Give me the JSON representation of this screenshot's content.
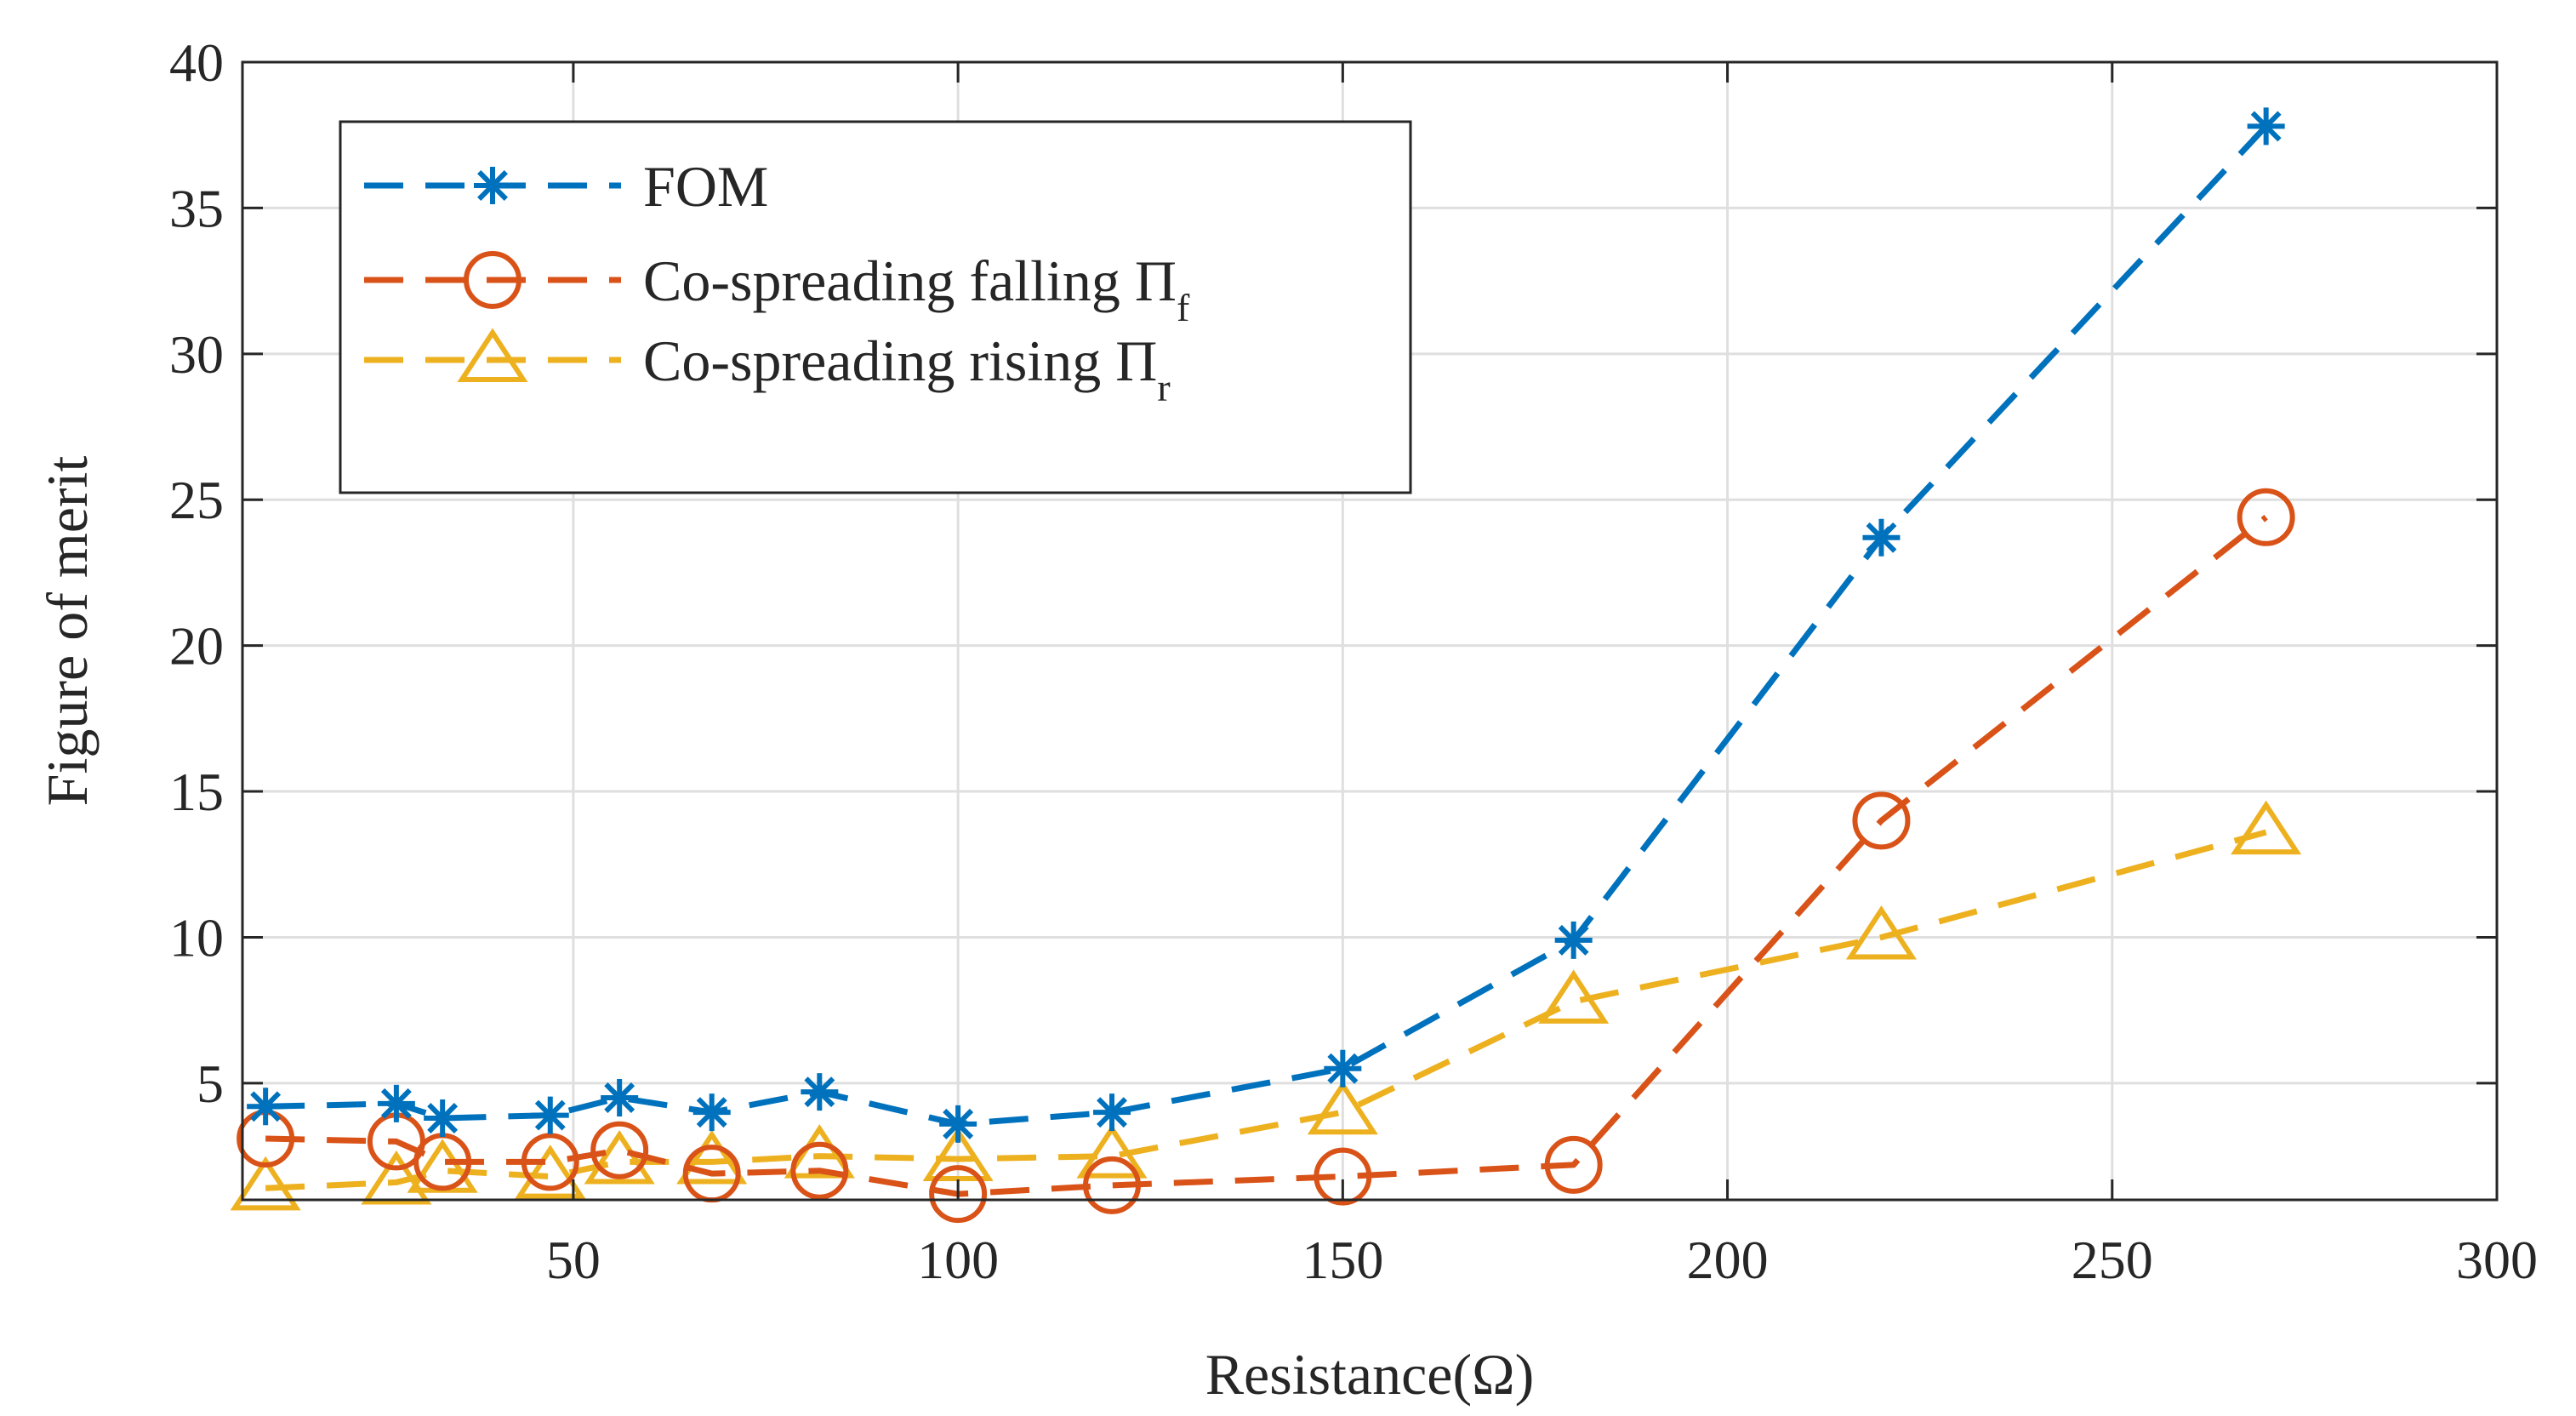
{
  "chart_data": {
    "type": "line",
    "xlabel": "Resistance(Ω)",
    "ylabel": "Figure of merit",
    "xlim": [
      7,
      300
    ],
    "ylim": [
      1,
      40
    ],
    "xticks": [
      50,
      100,
      150,
      200,
      250,
      300
    ],
    "yticks": [
      5,
      10,
      15,
      20,
      25,
      30,
      35,
      40
    ],
    "grid": true,
    "legend_position": "top-left",
    "x": [
      10,
      27,
      33,
      47,
      56,
      68,
      82,
      100,
      120,
      150,
      180,
      220,
      270
    ],
    "series": [
      {
        "name": "FOM",
        "label_main": "FOM",
        "label_sub": "",
        "marker": "asterisk",
        "color": "#0072BD",
        "values": [
          4.2,
          4.3,
          3.8,
          3.9,
          4.5,
          4.0,
          4.7,
          3.6,
          4.0,
          5.5,
          9.9,
          23.7,
          37.8
        ]
      },
      {
        "name": "Co-spreading falling Πf",
        "label_main": "Co-spreading falling Π",
        "label_sub": "f",
        "marker": "circle",
        "color": "#D95319",
        "values": [
          3.1,
          3.0,
          2.3,
          2.3,
          2.7,
          1.9,
          2.0,
          1.2,
          1.5,
          1.8,
          2.2,
          14.0,
          24.4
        ]
      },
      {
        "name": "Co-spreading rising Πr",
        "label_main": "Co-spreading rising Π",
        "label_sub": "r",
        "marker": "triangle",
        "color": "#EDB120",
        "values": [
          1.4,
          1.6,
          2.0,
          1.8,
          2.3,
          2.3,
          2.5,
          2.4,
          2.5,
          4.0,
          7.8,
          10.0,
          13.6
        ]
      }
    ]
  }
}
